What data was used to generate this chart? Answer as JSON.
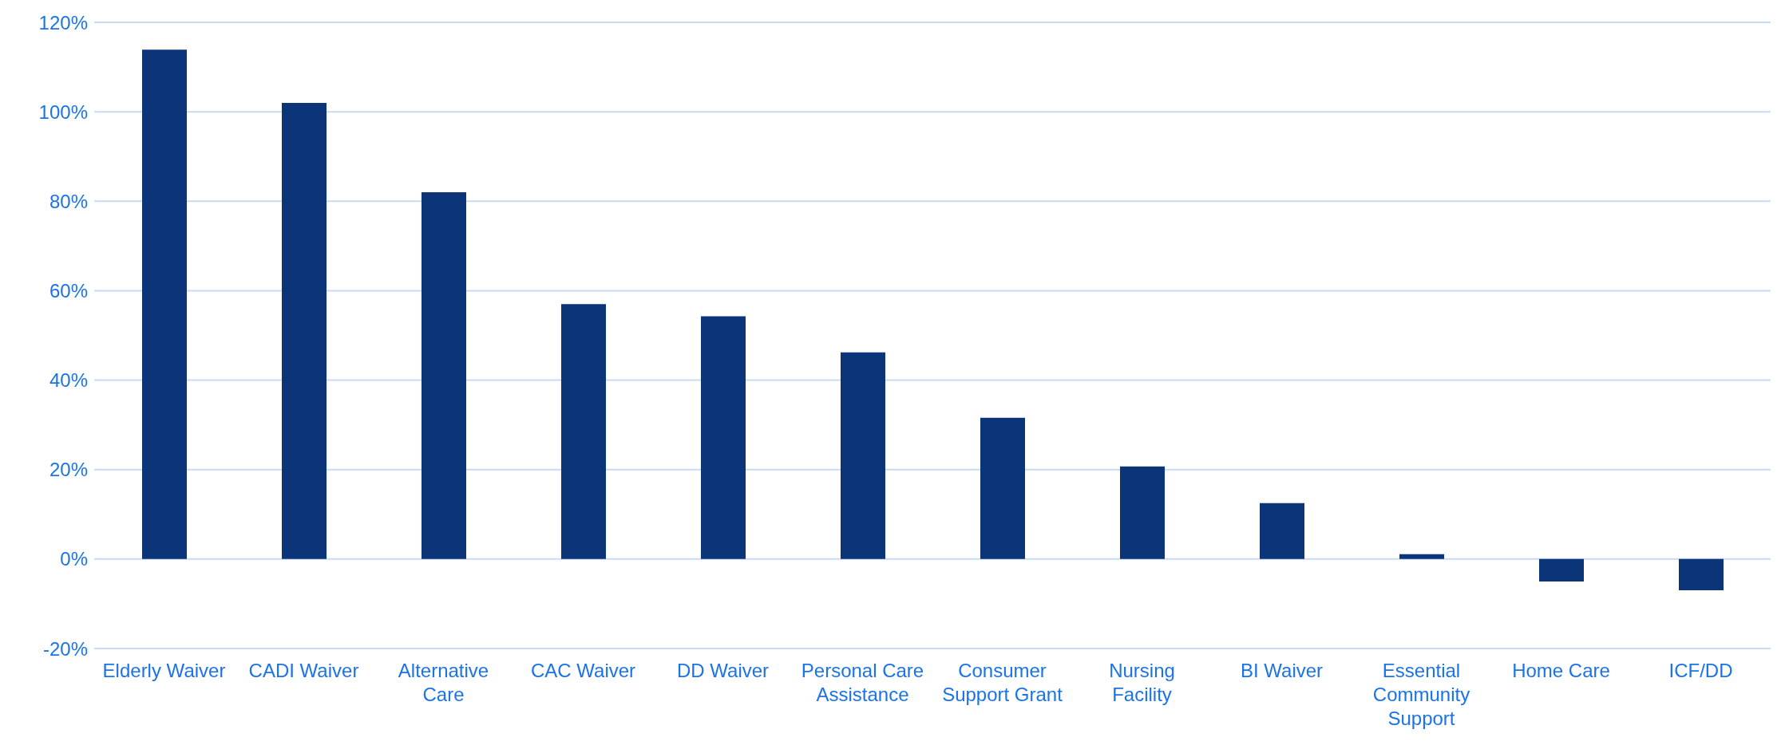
{
  "chart_data": {
    "type": "bar",
    "categories": [
      "Elderly Waiver",
      "CADI Waiver",
      "Alternative Care",
      "CAC Waiver",
      "DD Waiver",
      "Personal Care Assistance",
      "Consumer Support Grant",
      "Nursing Facility",
      "BI Waiver",
      "Essential Community Support",
      "Home Care",
      "ICF/DD"
    ],
    "values": [
      113.9,
      102,
      82,
      57,
      54.3,
      46.2,
      31.6,
      20.7,
      12.5,
      1.1,
      -5,
      -7
    ],
    "color": "#0b3578",
    "ylim": [
      -20,
      120
    ],
    "yticks": [
      {
        "value": -20,
        "label": "-20%"
      },
      {
        "value": 0,
        "label": "0%"
      },
      {
        "value": 20,
        "label": "20%"
      },
      {
        "value": 40,
        "label": "40%"
      },
      {
        "value": 60,
        "label": "60%"
      },
      {
        "value": 80,
        "label": "80%"
      },
      {
        "value": 100,
        "label": "100%"
      },
      {
        "value": 120,
        "label": "120%"
      }
    ],
    "grid": "y",
    "legend": false
  }
}
